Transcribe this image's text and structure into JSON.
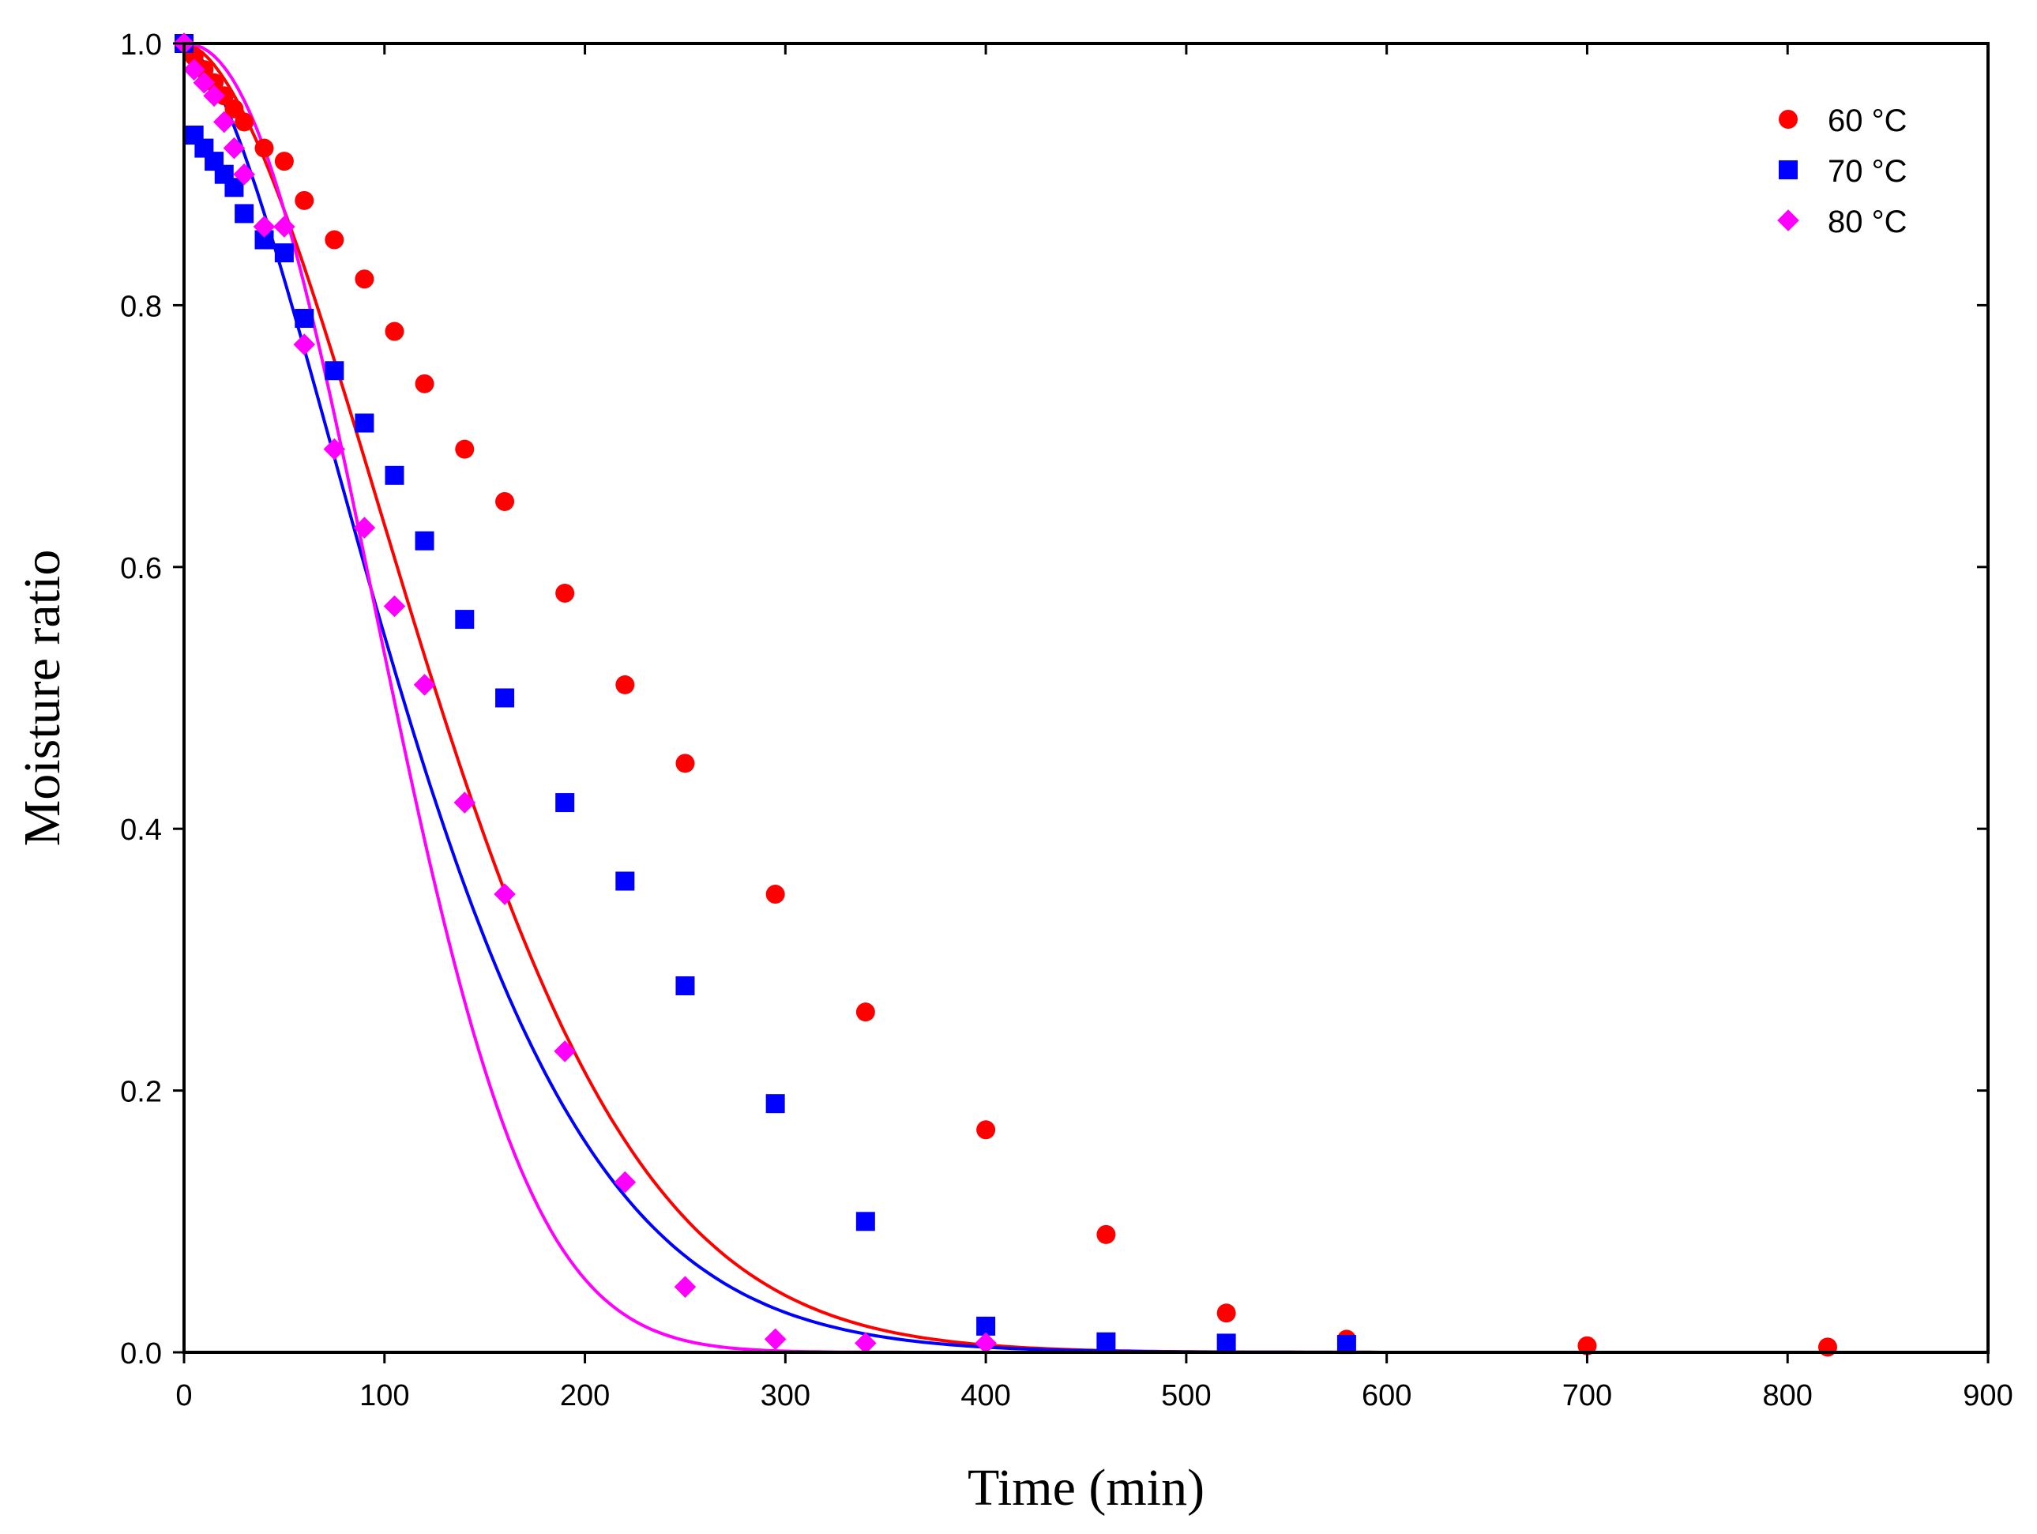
{
  "chart_data": {
    "type": "scatter",
    "title": "",
    "xlabel": "Time (min)",
    "ylabel": "Moisture ratio",
    "xlim": [
      0,
      900
    ],
    "ylim": [
      0,
      1.0
    ],
    "xticks": [
      0,
      100,
      200,
      300,
      400,
      500,
      600,
      700,
      800,
      900
    ],
    "yticks": [
      0.0,
      0.2,
      0.4,
      0.6,
      0.8,
      1.0
    ],
    "ytick_labels": [
      "0.0",
      "0.2",
      "0.4",
      "0.6",
      "0.8",
      "1.0"
    ],
    "grid": false,
    "legend_position": "top-right",
    "series": [
      {
        "name": "60 °C",
        "marker": "circle",
        "color": "#ff0000",
        "x": [
          0,
          5,
          10,
          15,
          20,
          25,
          30,
          40,
          50,
          60,
          75,
          90,
          105,
          120,
          140,
          160,
          190,
          220,
          250,
          295,
          340,
          400,
          460,
          520,
          580,
          700,
          820
        ],
        "y": [
          1.0,
          0.99,
          0.98,
          0.97,
          0.96,
          0.95,
          0.94,
          0.92,
          0.91,
          0.88,
          0.85,
          0.82,
          0.78,
          0.74,
          0.69,
          0.65,
          0.58,
          0.51,
          0.45,
          0.35,
          0.26,
          0.17,
          0.09,
          0.03,
          0.01,
          0.005,
          0.004
        ],
        "fit": {
          "model": "Page",
          "k": 0.000145,
          "n": 1.75
        }
      },
      {
        "name": "70 °C",
        "marker": "square",
        "color": "#0000ff",
        "x": [
          0,
          5,
          10,
          15,
          20,
          25,
          30,
          40,
          50,
          60,
          75,
          90,
          105,
          120,
          140,
          160,
          190,
          220,
          250,
          295,
          340,
          400,
          460,
          520,
          580
        ],
        "y": [
          1.0,
          0.93,
          0.92,
          0.91,
          0.9,
          0.89,
          0.87,
          0.85,
          0.84,
          0.79,
          0.75,
          0.71,
          0.67,
          0.62,
          0.56,
          0.5,
          0.42,
          0.36,
          0.28,
          0.19,
          0.1,
          0.02,
          0.008,
          0.007,
          0.006
        ],
        "fit": {
          "model": "Page",
          "k": 0.00038,
          "n": 1.6
        }
      },
      {
        "name": "80 °C",
        "marker": "diamond",
        "color": "#ff00ff",
        "x": [
          0,
          5,
          10,
          15,
          20,
          25,
          30,
          40,
          50,
          60,
          75,
          90,
          105,
          120,
          140,
          160,
          190,
          220,
          250,
          295,
          340,
          400
        ],
        "y": [
          1.0,
          0.98,
          0.97,
          0.96,
          0.94,
          0.92,
          0.9,
          0.86,
          0.86,
          0.77,
          0.69,
          0.63,
          0.57,
          0.51,
          0.42,
          0.35,
          0.23,
          0.13,
          0.05,
          0.01,
          0.007,
          0.007
        ],
        "fit": {
          "model": "Page",
          "k": 2.5e-05,
          "n": 2.2
        }
      }
    ]
  }
}
